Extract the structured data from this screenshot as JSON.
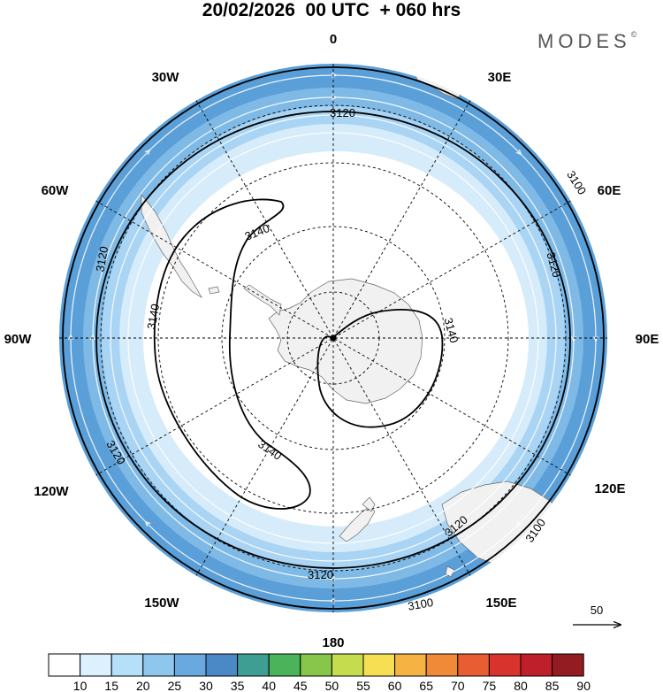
{
  "header": {
    "title": "20/02/2026  00 UTC  + 060 hrs",
    "brand": "MODES",
    "brand_mark": "©"
  },
  "map": {
    "projection": "south-polar-stereographic",
    "longitude_labels": [
      "0",
      "30E",
      "60E",
      "90E",
      "120E",
      "150E",
      "180",
      "150W",
      "120W",
      "90W",
      "60W",
      "30W"
    ],
    "contour_labels": [
      "3100",
      "3100",
      "3100",
      "3120",
      "3120",
      "3120",
      "3120",
      "3120",
      "3140",
      "3140",
      "3140",
      "3140"
    ],
    "reference_vector": {
      "value": "50"
    },
    "colors": {
      "ocean_outer": "#5b9fd8",
      "land": "#f2f2f2",
      "contour": "#000000",
      "graticule": "#000000",
      "streamline": "#ffffff"
    }
  },
  "colorbar": {
    "labels": [
      "10",
      "15",
      "20",
      "25",
      "30",
      "35",
      "40",
      "45",
      "50",
      "55",
      "60",
      "65",
      "70",
      "75",
      "80",
      "85",
      "90"
    ],
    "colors": [
      "#ffffff",
      "#dcf0fd",
      "#b6e0f9",
      "#8fc6ee",
      "#6aa8e0",
      "#4b88c6",
      "#3e9e94",
      "#4bb35a",
      "#87c64a",
      "#c5dc4e",
      "#f6df52",
      "#f5b343",
      "#f08a38",
      "#e85d32",
      "#d9332e",
      "#bf1f2a",
      "#931b22"
    ]
  }
}
